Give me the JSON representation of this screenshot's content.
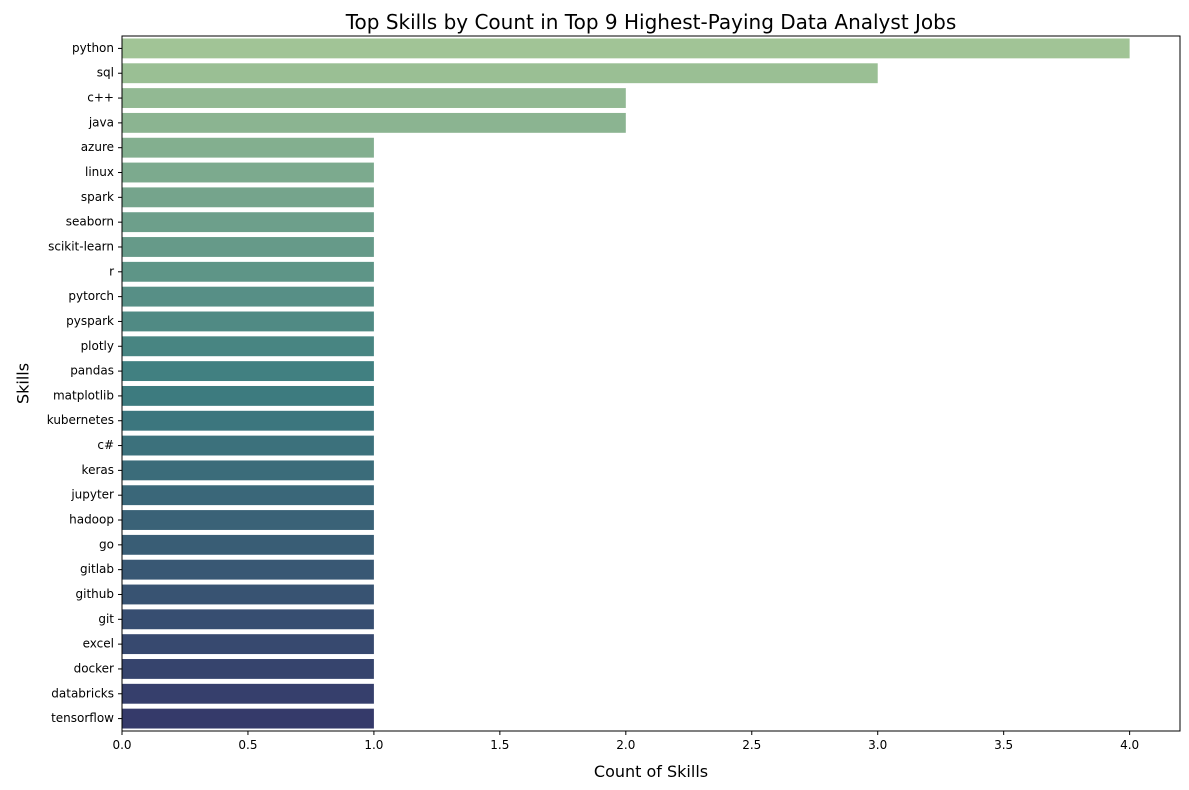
{
  "chart_data": {
    "type": "bar",
    "orientation": "horizontal",
    "title": "Top Skills by Count in Top 9 Highest-Paying Data Analyst Jobs",
    "xlabel": "Count of Skills",
    "ylabel": "Skills",
    "categories": [
      "python",
      "sql",
      "c++",
      "java",
      "azure",
      "linux",
      "spark",
      "seaborn",
      "scikit-learn",
      "r",
      "pytorch",
      "pyspark",
      "plotly",
      "pandas",
      "matplotlib",
      "kubernetes",
      "c#",
      "keras",
      "jupyter",
      "hadoop",
      "go",
      "gitlab",
      "github",
      "git",
      "excel",
      "docker",
      "databricks",
      "tensorflow"
    ],
    "values": [
      4,
      3,
      2,
      2,
      1,
      1,
      1,
      1,
      1,
      1,
      1,
      1,
      1,
      1,
      1,
      1,
      1,
      1,
      1,
      1,
      1,
      1,
      1,
      1,
      1,
      1,
      1,
      1
    ],
    "xlim": [
      0,
      4.2
    ],
    "xticks": [
      "0.0",
      "0.5",
      "1.0",
      "1.5",
      "2.0",
      "2.5",
      "3.0",
      "3.5",
      "4.0"
    ],
    "grid": false,
    "palette": "crest",
    "colors": {
      "start": "#a1c496",
      "mid": "#3d7d80",
      "end": "#353a6a"
    }
  }
}
